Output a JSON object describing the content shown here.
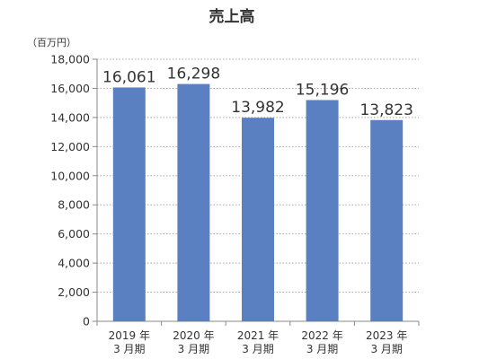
{
  "chart_data": {
    "type": "bar",
    "title": "売上高",
    "unit_label": "（百万円）",
    "categories": [
      [
        "2019 年",
        "3 月期"
      ],
      [
        "2020 年",
        "3 月期"
      ],
      [
        "2021 年",
        "3 月期"
      ],
      [
        "2022 年",
        "3 月期"
      ],
      [
        "2023 年",
        "3 月期"
      ]
    ],
    "values": [
      16061,
      16298,
      13982,
      15196,
      13823
    ],
    "value_labels": [
      "16,061",
      "16,298",
      "13,982",
      "15,196",
      "13,823"
    ],
    "ylim": [
      0,
      18000
    ],
    "yticks": [
      0,
      2000,
      4000,
      6000,
      8000,
      10000,
      12000,
      14000,
      16000,
      18000
    ],
    "ytick_labels": [
      "0",
      "2,000",
      "4,000",
      "6,000",
      "8,000",
      "10,000",
      "12,000",
      "14,000",
      "16,000",
      "18,000"
    ],
    "grid": true,
    "bar_color": "#5b80c2"
  }
}
